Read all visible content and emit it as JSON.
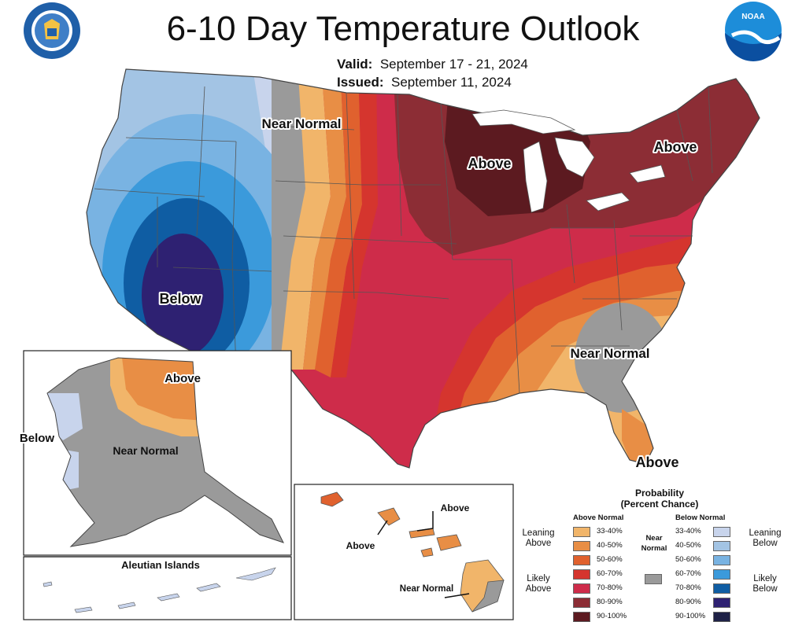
{
  "header": {
    "title": "6-10 Day Temperature Outlook",
    "valid_label": "Valid:",
    "valid_value": "September 17 - 21, 2024",
    "issued_label": "Issued:",
    "issued_value": "September 11, 2024"
  },
  "logos": {
    "doc_seal_text": "DEPARTMENT OF COMMERCE UNITED STATES OF AMERICA",
    "noaa_text": "NOAA"
  },
  "map_labels": {
    "conus_near_normal_nw": "Near Normal",
    "conus_below": "Below",
    "conus_above_midwest": "Above",
    "conus_above_northeast": "Above",
    "conus_near_normal_se": "Near Normal",
    "conus_above_florida": "Above",
    "alaska_above": "Above",
    "alaska_below": "Below",
    "alaska_near_normal": "Near Normal",
    "aleutian_title": "Aleutian Islands",
    "hawaii_above_1": "Above",
    "hawaii_above_2": "Above",
    "hawaii_near_normal": "Near Normal"
  },
  "legend": {
    "title_line1": "Probability",
    "title_line2": "(Percent Chance)",
    "above_header": "Above Normal",
    "below_header": "Below Normal",
    "near_label": "Near Normal",
    "leaning_above": "Leaning Above",
    "likely_above": "Likely Above",
    "leaning_below": "Leaning Below",
    "likely_below": "Likely Below",
    "above_items": [
      {
        "range": "33-40%",
        "color": "#F1B56A"
      },
      {
        "range": "40-50%",
        "color": "#E88E45"
      },
      {
        "range": "50-60%",
        "color": "#E0612E"
      },
      {
        "range": "60-70%",
        "color": "#D5352E"
      },
      {
        "range": "70-80%",
        "color": "#CE2C4A"
      },
      {
        "range": "80-90%",
        "color": "#8C2D35"
      },
      {
        "range": "90-100%",
        "color": "#5C1A20"
      }
    ],
    "below_items": [
      {
        "range": "33-40%",
        "color": "#C8D4EC"
      },
      {
        "range": "40-50%",
        "color": "#A3C4E4"
      },
      {
        "range": "50-60%",
        "color": "#79B3E2"
      },
      {
        "range": "60-70%",
        "color": "#3B9ADB"
      },
      {
        "range": "70-80%",
        "color": "#0F5DA3"
      },
      {
        "range": "80-90%",
        "color": "#2E2172"
      },
      {
        "range": "90-100%",
        "color": "#1E2146"
      }
    ],
    "near_color": "#9A9A9A"
  }
}
